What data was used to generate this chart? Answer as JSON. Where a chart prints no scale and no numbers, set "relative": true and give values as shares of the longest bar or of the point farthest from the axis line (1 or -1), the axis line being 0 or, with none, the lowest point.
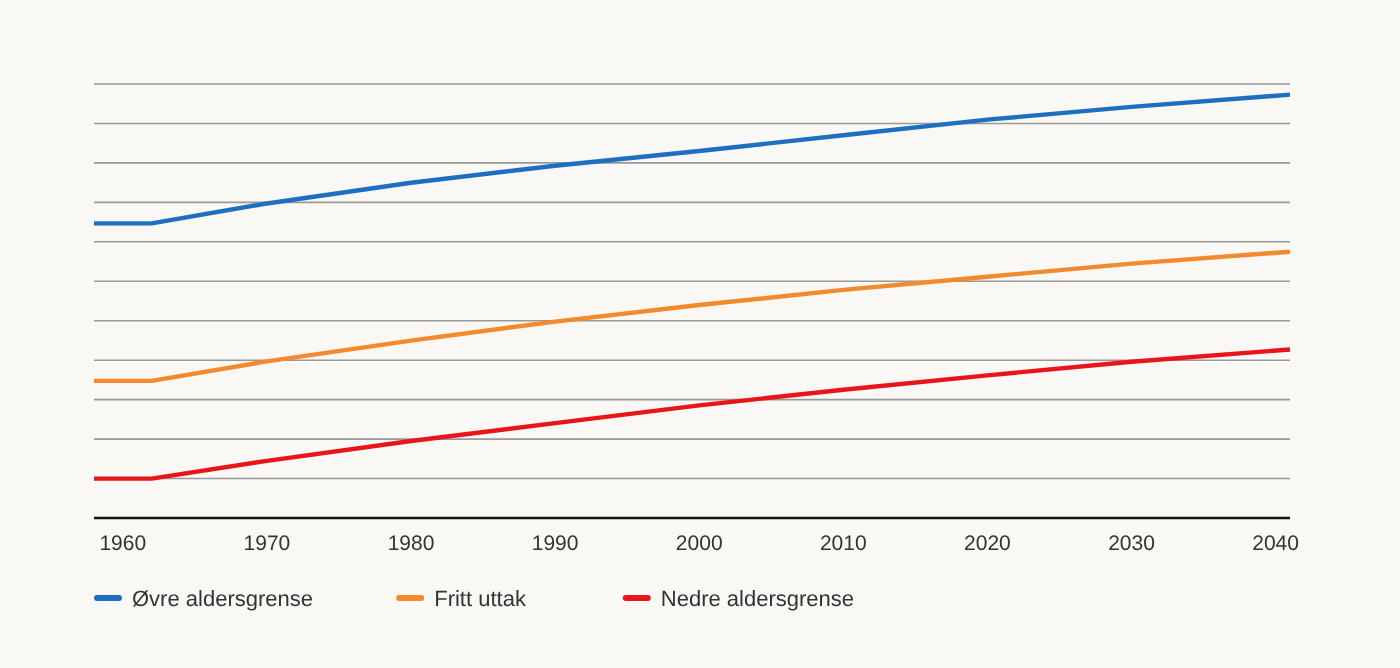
{
  "chart_data": {
    "type": "line",
    "relative": true,
    "x": [
      1958,
      1962,
      1970,
      1980,
      1990,
      2000,
      2010,
      2020,
      2030,
      2041
    ],
    "series": [
      {
        "name": "Øvre aldersgrense",
        "color": "#1f6fc0",
        "values": [
          0.696,
          0.696,
          0.743,
          0.792,
          0.832,
          0.867,
          0.904,
          0.941,
          0.971,
          1
        ]
      },
      {
        "name": "Fritt uttak",
        "color": "#f28a2e",
        "values": [
          0.324,
          0.324,
          0.37,
          0.419,
          0.464,
          0.503,
          0.539,
          0.57,
          0.601,
          0.629
        ]
      },
      {
        "name": "Nedre aldersgrense",
        "color": "#e8161b",
        "values": [
          0.093,
          0.093,
          0.135,
          0.182,
          0.224,
          0.266,
          0.303,
          0.337,
          0.369,
          0.398
        ]
      }
    ],
    "xlim": [
      1958,
      2041
    ],
    "xticks": [
      1960,
      1970,
      1980,
      1990,
      2000,
      2010,
      2020,
      2030,
      2040
    ],
    "grid": "y",
    "legend": "bottom left",
    "marker": "none",
    "line_style": "solid"
  }
}
